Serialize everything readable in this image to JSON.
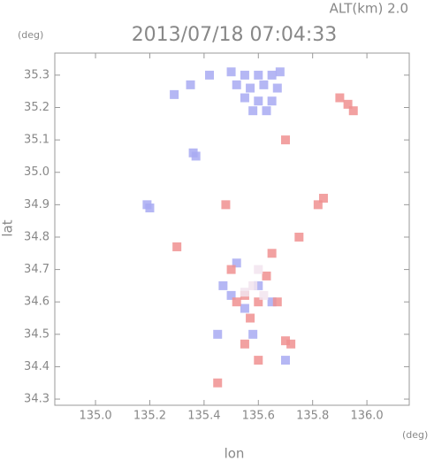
{
  "chart_data": {
    "type": "scatter",
    "title": "2013/07/18 07:04:33",
    "annotation": "ALT(km) 2.0",
    "x_label": "lon",
    "y_label": "lat",
    "x_unit": "(deg)",
    "y_unit": "(deg)",
    "xlim": [
      134.85,
      136.156
    ],
    "ylim": [
      34.281,
      35.368
    ],
    "xticks": [
      {
        "value": 135,
        "label": "135.0"
      },
      135.2,
      135.4,
      135.6,
      135.8,
      {
        "value": 136,
        "label": "136.0"
      }
    ],
    "yticks": [
      34.3,
      34.4,
      34.5,
      34.6,
      34.7,
      34.8,
      34.9,
      {
        "value": 35,
        "label": "35.0"
      },
      35.1,
      35.2,
      35.3
    ],
    "series": [
      {
        "color": "#a8aaf2",
        "x": [
          135.5,
          135.55,
          135.6,
          135.65,
          135.68,
          135.52,
          135.57,
          135.62,
          135.67,
          135.55,
          135.6,
          135.65,
          135.58,
          135.63,
          135.42,
          135.35,
          135.29,
          135.37,
          135.36,
          135.19,
          135.2,
          135.5,
          135.55,
          135.6,
          135.47,
          135.65,
          135.58,
          135.7,
          135.45,
          135.52
        ],
        "y": [
          35.31,
          35.3,
          35.3,
          35.3,
          35.31,
          35.27,
          35.26,
          35.27,
          35.26,
          35.23,
          35.22,
          35.22,
          35.19,
          35.19,
          35.3,
          35.27,
          35.24,
          35.05,
          35.06,
          34.9,
          34.89,
          34.62,
          34.58,
          34.65,
          34.65,
          34.6,
          34.5,
          34.42,
          34.5,
          34.72
        ]
      },
      {
        "color": "#f09090",
        "x": [
          135.9,
          135.93,
          135.95,
          135.7,
          135.55,
          135.52,
          135.6,
          135.57,
          135.63,
          135.5,
          135.67,
          135.7,
          135.72,
          135.55,
          135.6,
          135.82,
          135.84,
          135.65,
          135.75,
          135.45,
          135.3,
          135.48
        ],
        "y": [
          35.23,
          35.21,
          35.19,
          35.1,
          34.62,
          34.6,
          34.6,
          34.55,
          34.68,
          34.7,
          34.6,
          34.48,
          34.47,
          34.47,
          34.42,
          34.9,
          34.92,
          34.75,
          34.8,
          34.35,
          34.77,
          34.9
        ]
      },
      {
        "color": "#f2e4ee",
        "x": [
          135.55,
          135.58,
          135.6,
          135.62
        ],
        "y": [
          34.63,
          34.65,
          34.7,
          34.62
        ]
      }
    ]
  }
}
